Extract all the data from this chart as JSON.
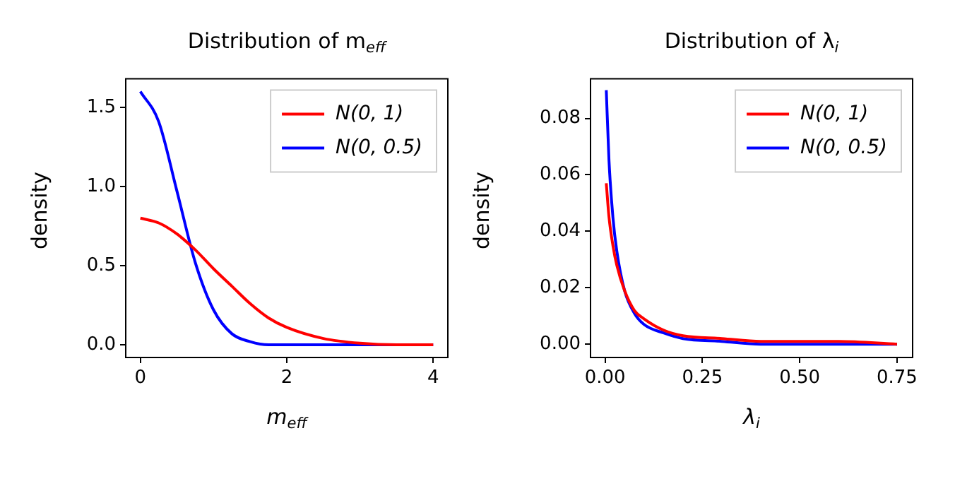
{
  "chart_data": [
    {
      "type": "line",
      "title": "Distribution of m$_{eff}$",
      "xlabel": "m$_{eff}$",
      "ylabel": "density",
      "x": [
        0,
        0.25,
        0.5,
        0.75,
        1,
        1.25,
        1.5,
        1.75,
        2,
        2.5,
        3,
        3.5,
        4
      ],
      "series": [
        {
          "name": "N(0, 1)",
          "color": "#ff0000",
          "values": [
            0.8,
            0.77,
            0.7,
            0.6,
            0.48,
            0.37,
            0.26,
            0.17,
            0.11,
            0.04,
            0.01,
            0,
            0
          ]
        },
        {
          "name": "N(0, 0.5)",
          "color": "#0000ff",
          "values": [
            1.6,
            1.41,
            0.97,
            0.52,
            0.22,
            0.07,
            0.02,
            0,
            0,
            0,
            0,
            0,
            0
          ]
        }
      ],
      "xlim": [
        -0.2,
        4.2
      ],
      "ylim": [
        -0.08,
        1.68
      ],
      "xticks": [
        0,
        2,
        4
      ],
      "yticks": [
        {
          "value": 0,
          "label": "0.0"
        },
        {
          "value": 0.5,
          "label": "0.5"
        },
        {
          "value": 1,
          "label": "1.0"
        },
        {
          "value": 1.5,
          "label": "1.5"
        }
      ],
      "grid": false,
      "legend": "top right",
      "marker": "none",
      "line_style": "solid"
    },
    {
      "type": "line",
      "title": "Distribution of λ$_{i}$",
      "xlabel": "λ$_{i}$",
      "ylabel": "density",
      "series": [
        {
          "name": "N(0, 1)",
          "color": "#ff0000",
          "x": [
            0.003,
            0.01,
            0.02,
            0.03,
            0.05,
            0.075,
            0.1,
            0.15,
            0.2,
            0.3,
            0.4,
            0.5,
            0.6,
            0.75
          ],
          "values": [
            0.057,
            0.045,
            0.035,
            0.028,
            0.019,
            0.012,
            0.009,
            0.005,
            0.003,
            0.002,
            0.001,
            0.001,
            0.001,
            0
          ]
        },
        {
          "name": "N(0, 0.5)",
          "color": "#0000ff",
          "x": [
            0.003,
            0.01,
            0.02,
            0.03,
            0.05,
            0.075,
            0.1,
            0.15,
            0.2,
            0.3,
            0.4,
            0.5,
            0.75
          ],
          "values": [
            0.09,
            0.065,
            0.045,
            0.033,
            0.019,
            0.011,
            0.007,
            0.004,
            0.002,
            0.001,
            0,
            0,
            0
          ]
        }
      ],
      "xlim": [
        -0.0375,
        0.79
      ],
      "ylim": [
        -0.0047,
        0.094
      ],
      "xticks": [
        {
          "value": 0,
          "label": "0.00"
        },
        {
          "value": 0.25,
          "label": "0.25"
        },
        {
          "value": 0.5,
          "label": "0.50"
        },
        {
          "value": 0.75,
          "label": "0.75"
        }
      ],
      "yticks": [
        {
          "value": 0,
          "label": "0.00"
        },
        {
          "value": 0.02,
          "label": "0.02"
        },
        {
          "value": 0.04,
          "label": "0.04"
        },
        {
          "value": 0.06,
          "label": "0.06"
        },
        {
          "value": 0.08,
          "label": "0.08"
        }
      ],
      "grid": false,
      "legend": "top right",
      "marker": "none",
      "line_style": "solid"
    }
  ]
}
